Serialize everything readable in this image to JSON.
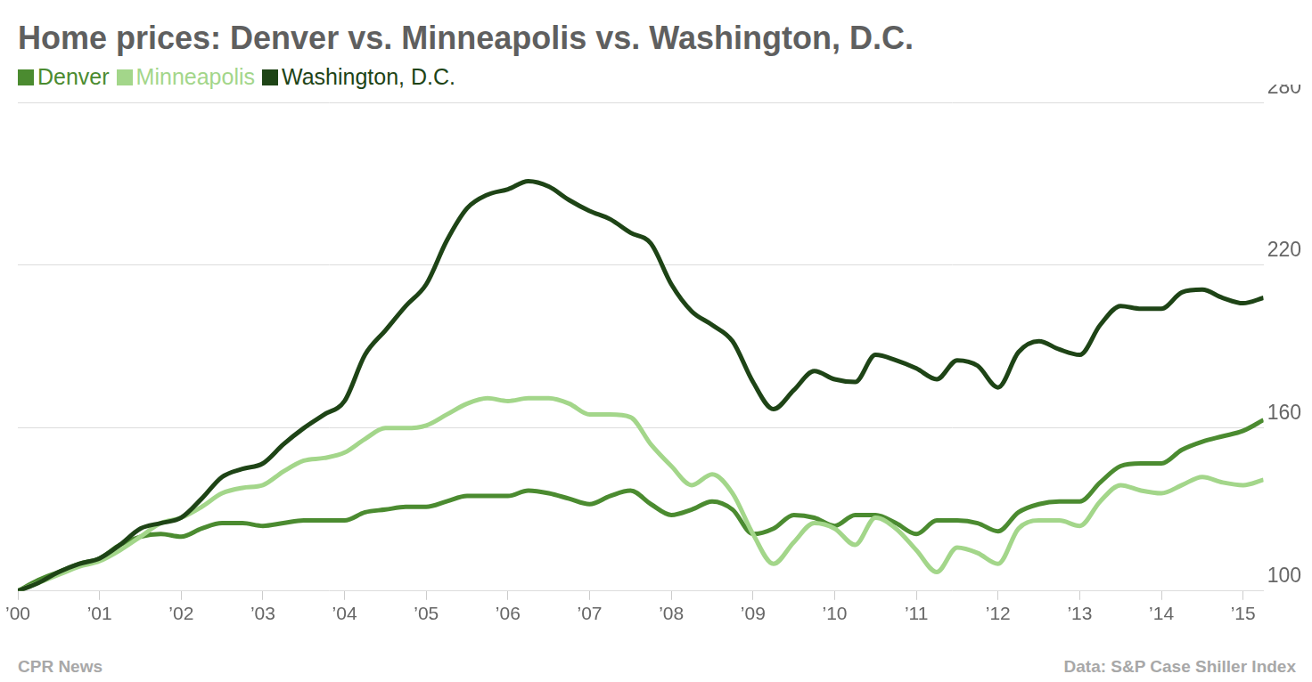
{
  "chart_data": {
    "type": "line",
    "title": "Home prices: Denver vs. Minneapolis vs. Washington, D.C.",
    "credit": "CPR News",
    "source": "Data: S&P Case Shiller Index",
    "legend": "top-left",
    "grid": true,
    "categories": [
      "’00",
      null,
      null,
      null,
      "’01",
      null,
      null,
      null,
      "’02",
      null,
      null,
      null,
      "’03",
      null,
      null,
      null,
      "’04",
      null,
      null,
      null,
      "’05",
      null,
      null,
      null,
      "’06",
      null,
      null,
      null,
      "’07",
      null,
      null,
      null,
      "’08",
      null,
      null,
      null,
      "’09",
      null,
      null,
      null,
      "’10",
      null,
      null,
      null,
      "’11",
      null,
      null,
      null,
      "’12",
      null,
      null,
      null,
      "’13",
      null,
      null,
      null,
      "’14",
      null,
      null,
      null,
      "’15",
      null
    ],
    "ylim": [
      100,
      280
    ],
    "yticks": [
      100,
      160,
      220,
      280
    ],
    "series": [
      {
        "name": "Denver",
        "color": "#4b8b30",
        "values": [
          100,
          104,
          107,
          110,
          112,
          117,
          120,
          121,
          120,
          123,
          125,
          125,
          124,
          125,
          126,
          126,
          126,
          129,
          130,
          131,
          131,
          133,
          135,
          135,
          135,
          137,
          136,
          134,
          132,
          135,
          137,
          132,
          128,
          130,
          133,
          130,
          121,
          123,
          128,
          127,
          124,
          128,
          128,
          125,
          121,
          126,
          126,
          125,
          122,
          129,
          132,
          133,
          133,
          140,
          146,
          147,
          147,
          152,
          155,
          157,
          159,
          163
        ]
      },
      {
        "name": "Minneapolis",
        "color": "#a3d68a",
        "values": [
          100,
          103,
          106,
          109,
          111,
          115,
          120,
          125,
          127,
          131,
          136,
          138,
          139,
          144,
          148,
          149,
          151,
          156,
          160,
          160,
          161,
          165,
          169,
          171,
          170,
          171,
          171,
          169,
          165,
          165,
          164,
          154,
          146,
          139,
          143,
          136,
          121,
          110,
          118,
          125,
          123,
          117,
          127,
          123,
          115,
          107,
          116,
          114,
          110,
          123,
          126,
          126,
          124,
          133,
          139,
          137,
          136,
          139,
          142,
          140,
          139,
          141
        ]
      },
      {
        "name": "Washington, D.C.",
        "color": "#1e4416",
        "values": [
          100,
          103,
          107,
          110,
          112,
          117,
          123,
          125,
          127,
          134,
          142,
          145,
          147,
          154,
          160,
          165,
          170,
          187,
          196,
          205,
          213,
          229,
          241,
          246,
          248,
          251,
          249,
          244,
          240,
          237,
          232,
          228,
          213,
          203,
          198,
          192,
          177,
          167,
          174,
          181,
          178,
          177,
          187,
          185,
          182,
          178,
          185,
          183,
          175,
          188,
          192,
          189,
          187,
          198,
          205,
          204,
          204,
          210,
          211,
          208,
          206,
          208
        ]
      }
    ]
  }
}
